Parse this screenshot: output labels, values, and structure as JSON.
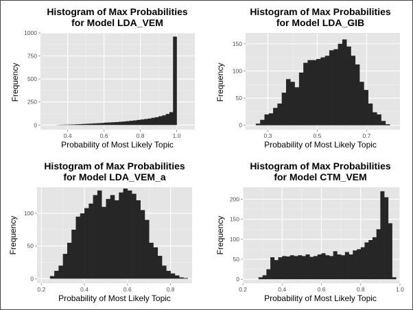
{
  "colors": {
    "panel_background": "#e5e5e5",
    "major_grid": "#ffffff",
    "minor_grid": "#f2f2f2",
    "bar_fill": "#262626",
    "tick_text": "#4d4d4d"
  },
  "chart_data": [
    {
      "type": "bar",
      "title": [
        "Histogram of Max Probabilities",
        "for Model LDA_VEM"
      ],
      "xlabel": "Probability of Most Likely Topic",
      "ylabel": "Frequency",
      "xlim": [
        0.25,
        1.1
      ],
      "ylim": [
        -50,
        1000
      ],
      "xticks": [
        0.4,
        0.6,
        0.8,
        1.0
      ],
      "xtick_labels": [
        "0.4",
        "0.6",
        "0.8",
        "1.0"
      ],
      "yticks": [
        0,
        250,
        500,
        750,
        1000
      ],
      "ytick_labels": [
        "0",
        "250",
        "500",
        "750",
        "1000"
      ],
      "grid": true,
      "bin_width": 0.02,
      "x": [
        0.35,
        0.37,
        0.39,
        0.41,
        0.43,
        0.45,
        0.47,
        0.49,
        0.51,
        0.53,
        0.55,
        0.57,
        0.59,
        0.61,
        0.63,
        0.65,
        0.67,
        0.69,
        0.71,
        0.73,
        0.75,
        0.77,
        0.79,
        0.81,
        0.83,
        0.85,
        0.87,
        0.89,
        0.91,
        0.93,
        0.95,
        0.97,
        0.99
      ],
      "values": [
        2,
        3,
        4,
        5,
        6,
        8,
        10,
        12,
        14,
        16,
        18,
        20,
        22,
        26,
        28,
        30,
        32,
        35,
        38,
        42,
        46,
        50,
        55,
        60,
        65,
        70,
        78,
        85,
        95,
        105,
        120,
        140,
        960
      ]
    },
    {
      "type": "bar",
      "title": [
        "Histogram of Max Probabilities",
        "for Model LDA_GIB"
      ],
      "xlabel": "Probability of Most Likely Topic",
      "ylabel": "Frequency",
      "xlim": [
        0.21,
        0.835
      ],
      "ylim": [
        -8,
        170
      ],
      "xticks": [
        0.3,
        0.5,
        0.7
      ],
      "xtick_labels": [
        "0.3",
        "0.5",
        "0.7"
      ],
      "yticks": [
        0,
        50,
        100,
        150
      ],
      "ytick_labels": [
        "0",
        "50",
        "100",
        "150"
      ],
      "grid": true,
      "bin_width": 0.0175,
      "x": [
        0.26,
        0.2775,
        0.295,
        0.3125,
        0.33,
        0.3475,
        0.365,
        0.3825,
        0.4,
        0.4175,
        0.435,
        0.4525,
        0.47,
        0.4875,
        0.505,
        0.5225,
        0.54,
        0.5575,
        0.575,
        0.5925,
        0.61,
        0.6275,
        0.645,
        0.6625,
        0.68,
        0.6975,
        0.715,
        0.7325,
        0.75,
        0.7675,
        0.785
      ],
      "values": [
        3,
        10,
        20,
        22,
        32,
        40,
        60,
        85,
        80,
        70,
        97,
        115,
        120,
        120,
        122,
        125,
        128,
        138,
        140,
        150,
        158,
        145,
        128,
        112,
        80,
        65,
        40,
        24,
        20,
        8,
        2
      ]
    },
    {
      "type": "bar",
      "title": [
        "Histogram of Max Probabilities",
        "for Model LDA_VEM_a"
      ],
      "xlabel": "Probability of Most Likely Topic",
      "ylabel": "Frequency",
      "xlim": [
        0.18,
        0.9
      ],
      "ylim": [
        -7,
        140
      ],
      "xticks": [
        0.2,
        0.4,
        0.6,
        0.8
      ],
      "xtick_labels": [
        "0.2",
        "0.4",
        "0.6",
        "0.8"
      ],
      "yticks": [
        0,
        50,
        100
      ],
      "ytick_labels": [
        "0",
        "50",
        "100"
      ],
      "grid": true,
      "bin_width": 0.02,
      "x": [
        0.25,
        0.27,
        0.29,
        0.31,
        0.33,
        0.35,
        0.37,
        0.39,
        0.41,
        0.43,
        0.45,
        0.47,
        0.49,
        0.51,
        0.53,
        0.55,
        0.57,
        0.59,
        0.61,
        0.63,
        0.65,
        0.67,
        0.69,
        0.71,
        0.73,
        0.75,
        0.77,
        0.79,
        0.81,
        0.83,
        0.85,
        0.87
      ],
      "values": [
        4,
        12,
        20,
        38,
        55,
        75,
        95,
        100,
        108,
        115,
        128,
        135,
        110,
        122,
        128,
        120,
        132,
        138,
        135,
        130,
        120,
        105,
        90,
        55,
        48,
        35,
        20,
        12,
        8,
        5,
        2,
        1
      ]
    },
    {
      "type": "bar",
      "title": [
        "Histogram of Max Probabilities",
        "for Model CTM_VEM"
      ],
      "xlabel": "Probability of Most Likely Topic",
      "ylabel": "Frequency",
      "xlim": [
        0.2,
        1.0
      ],
      "ylim": [
        -10,
        230
      ],
      "xticks": [
        0.2,
        0.4,
        0.6,
        0.8,
        1.0
      ],
      "xtick_labels": [
        "0.2",
        "0.4",
        "0.6",
        "0.8",
        "1.0"
      ],
      "yticks": [
        0,
        50,
        100,
        150,
        200
      ],
      "ytick_labels": [
        "0",
        "50",
        "100",
        "150",
        "200"
      ],
      "grid": true,
      "bin_width": 0.02,
      "x": [
        0.29,
        0.31,
        0.33,
        0.35,
        0.37,
        0.39,
        0.41,
        0.43,
        0.45,
        0.47,
        0.49,
        0.51,
        0.53,
        0.55,
        0.57,
        0.59,
        0.61,
        0.63,
        0.65,
        0.67,
        0.69,
        0.71,
        0.73,
        0.75,
        0.77,
        0.79,
        0.81,
        0.83,
        0.85,
        0.87,
        0.89,
        0.91,
        0.93,
        0.95,
        0.97
      ],
      "values": [
        5,
        10,
        25,
        55,
        48,
        55,
        58,
        57,
        60,
        58,
        60,
        58,
        62,
        56,
        58,
        62,
        65,
        60,
        58,
        70,
        62,
        60,
        68,
        62,
        72,
        75,
        80,
        92,
        98,
        105,
        125,
        220,
        205,
        140,
        5
      ]
    }
  ]
}
